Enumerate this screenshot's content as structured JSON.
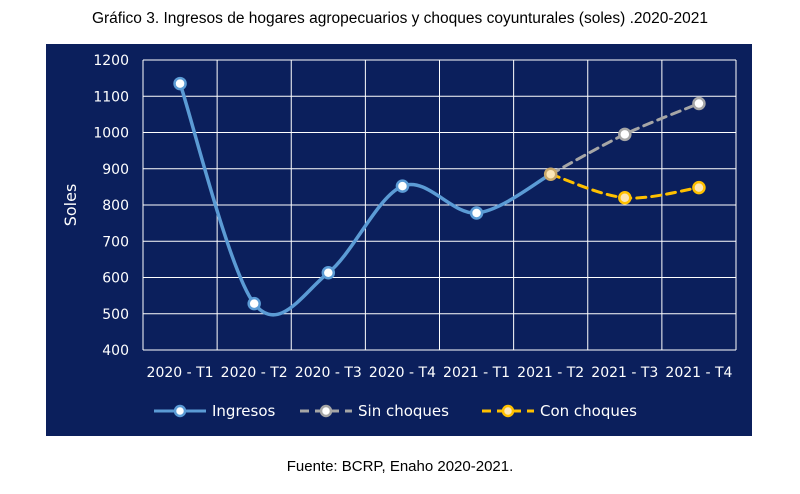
{
  "title": "Gráfico 3. Ingresos de hogares agropecuarios y choques coyunturales (soles) .2020-2021",
  "source": "Fuente: BCRP, Enaho 2020-2021.",
  "colors": {
    "background": "#0b1f5c",
    "grid": "#ffffff",
    "ingresos": "#5b9bd5",
    "sin_choques": "#a6a6a6",
    "con_choques": "#ffc000"
  },
  "chart_data": {
    "type": "line",
    "ylabel": "Soles",
    "xlabel": "",
    "ylim": [
      400,
      1200
    ],
    "yticks": [
      400,
      500,
      600,
      700,
      800,
      900,
      1000,
      1100,
      1200
    ],
    "categories": [
      "2020 - T1",
      "2020 - T2",
      "2020 - T3",
      "2020 - T4",
      "2021 - T1",
      "2021 - T2",
      "2021 - T3",
      "2021 - T4"
    ],
    "grid": true,
    "legend_position": "bottom",
    "series": [
      {
        "name": "Ingresos",
        "values": [
          1135,
          528,
          613,
          852,
          778,
          885,
          null,
          null
        ]
      },
      {
        "name": "Sin choques",
        "values": [
          null,
          null,
          null,
          null,
          null,
          885,
          995,
          1080
        ]
      },
      {
        "name": "Con choques",
        "values": [
          null,
          null,
          null,
          null,
          null,
          885,
          820,
          848
        ]
      }
    ]
  }
}
